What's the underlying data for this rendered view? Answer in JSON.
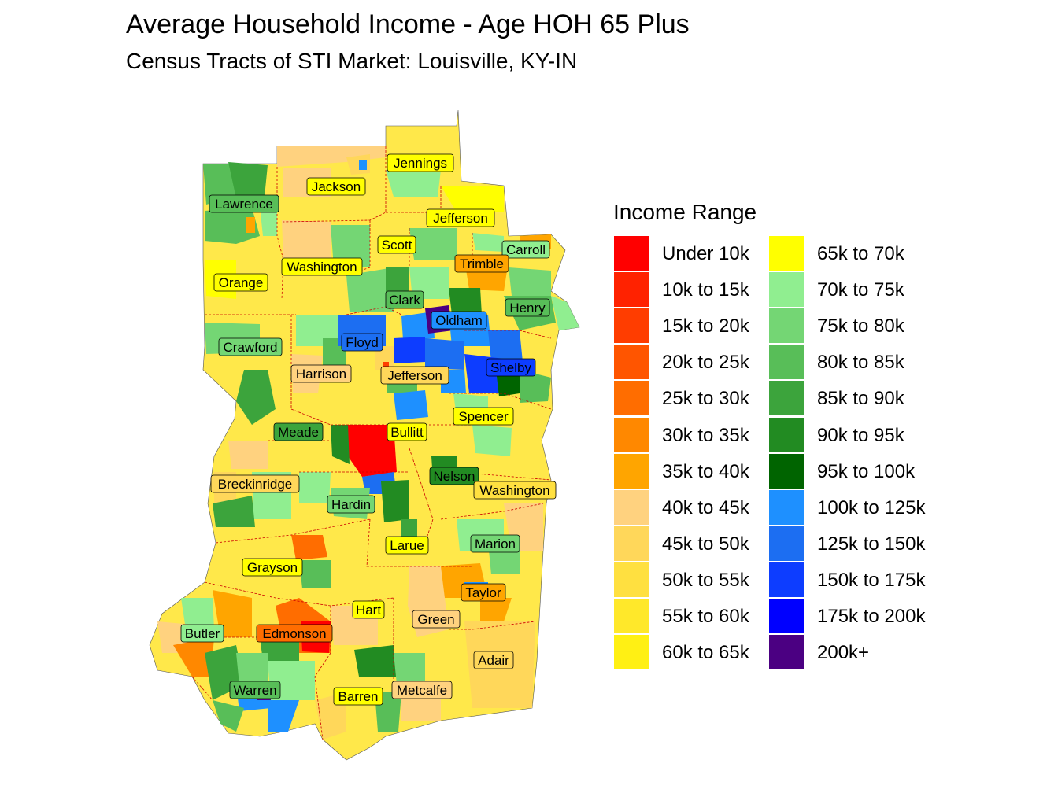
{
  "title": "Average Household Income - Age HOH 65 Plus",
  "subtitle": "Census Tracts of STI Market: Louisville, KY-IN",
  "legend": {
    "title": "Income Range",
    "items": [
      {
        "label": "Under 10k",
        "color": "#ff0000"
      },
      {
        "label": "10k to 15k",
        "color": "#ff2200"
      },
      {
        "label": "15k to 20k",
        "color": "#ff3d00"
      },
      {
        "label": "20k to 25k",
        "color": "#ff5500"
      },
      {
        "label": "25k to 30k",
        "color": "#ff6d00"
      },
      {
        "label": "30k to 35k",
        "color": "#ff8800"
      },
      {
        "label": "35k to 40k",
        "color": "#ffa500"
      },
      {
        "label": "40k to 45k",
        "color": "#ffd27f"
      },
      {
        "label": "45k to 50k",
        "color": "#ffd75a"
      },
      {
        "label": "50k to 55k",
        "color": "#ffe040"
      },
      {
        "label": "55k to 60k",
        "color": "#ffe82a"
      },
      {
        "label": "60k to 65k",
        "color": "#fff014"
      },
      {
        "label": "65k to 70k",
        "color": "#ffff00"
      },
      {
        "label": "70k to 75k",
        "color": "#90ee90"
      },
      {
        "label": "75k to 80k",
        "color": "#74d674"
      },
      {
        "label": "80k to 85k",
        "color": "#58be58"
      },
      {
        "label": "85k to 90k",
        "color": "#3ca43c"
      },
      {
        "label": "90k to 95k",
        "color": "#228b22"
      },
      {
        "label": "95k to 100k",
        "color": "#006400"
      },
      {
        "label": "100k to 125k",
        "color": "#1e90ff"
      },
      {
        "label": "125k to 150k",
        "color": "#1c6ef2"
      },
      {
        "label": "150k to 175k",
        "color": "#0d3dff"
      },
      {
        "label": "175k to 200k",
        "color": "#0000ff"
      },
      {
        "label": "200k+",
        "color": "#4b0082"
      }
    ]
  },
  "counties": [
    "Jennings",
    "Jackson",
    "Lawrence",
    "Jefferson",
    "Scott",
    "Carroll",
    "Trimble",
    "Washington",
    "Orange",
    "Clark",
    "Henry",
    "Oldham",
    "Floyd",
    "Crawford",
    "Shelby",
    "Harrison",
    "Jefferson",
    "Spencer",
    "Meade",
    "Bullitt",
    "Breckinridge",
    "Nelson",
    "Washington",
    "Hardin",
    "Marion",
    "Larue",
    "Grayson",
    "Taylor",
    "Hart",
    "Green",
    "Butler",
    "Edmonson",
    "Adair",
    "Warren",
    "Metcalfe",
    "Barren"
  ]
}
